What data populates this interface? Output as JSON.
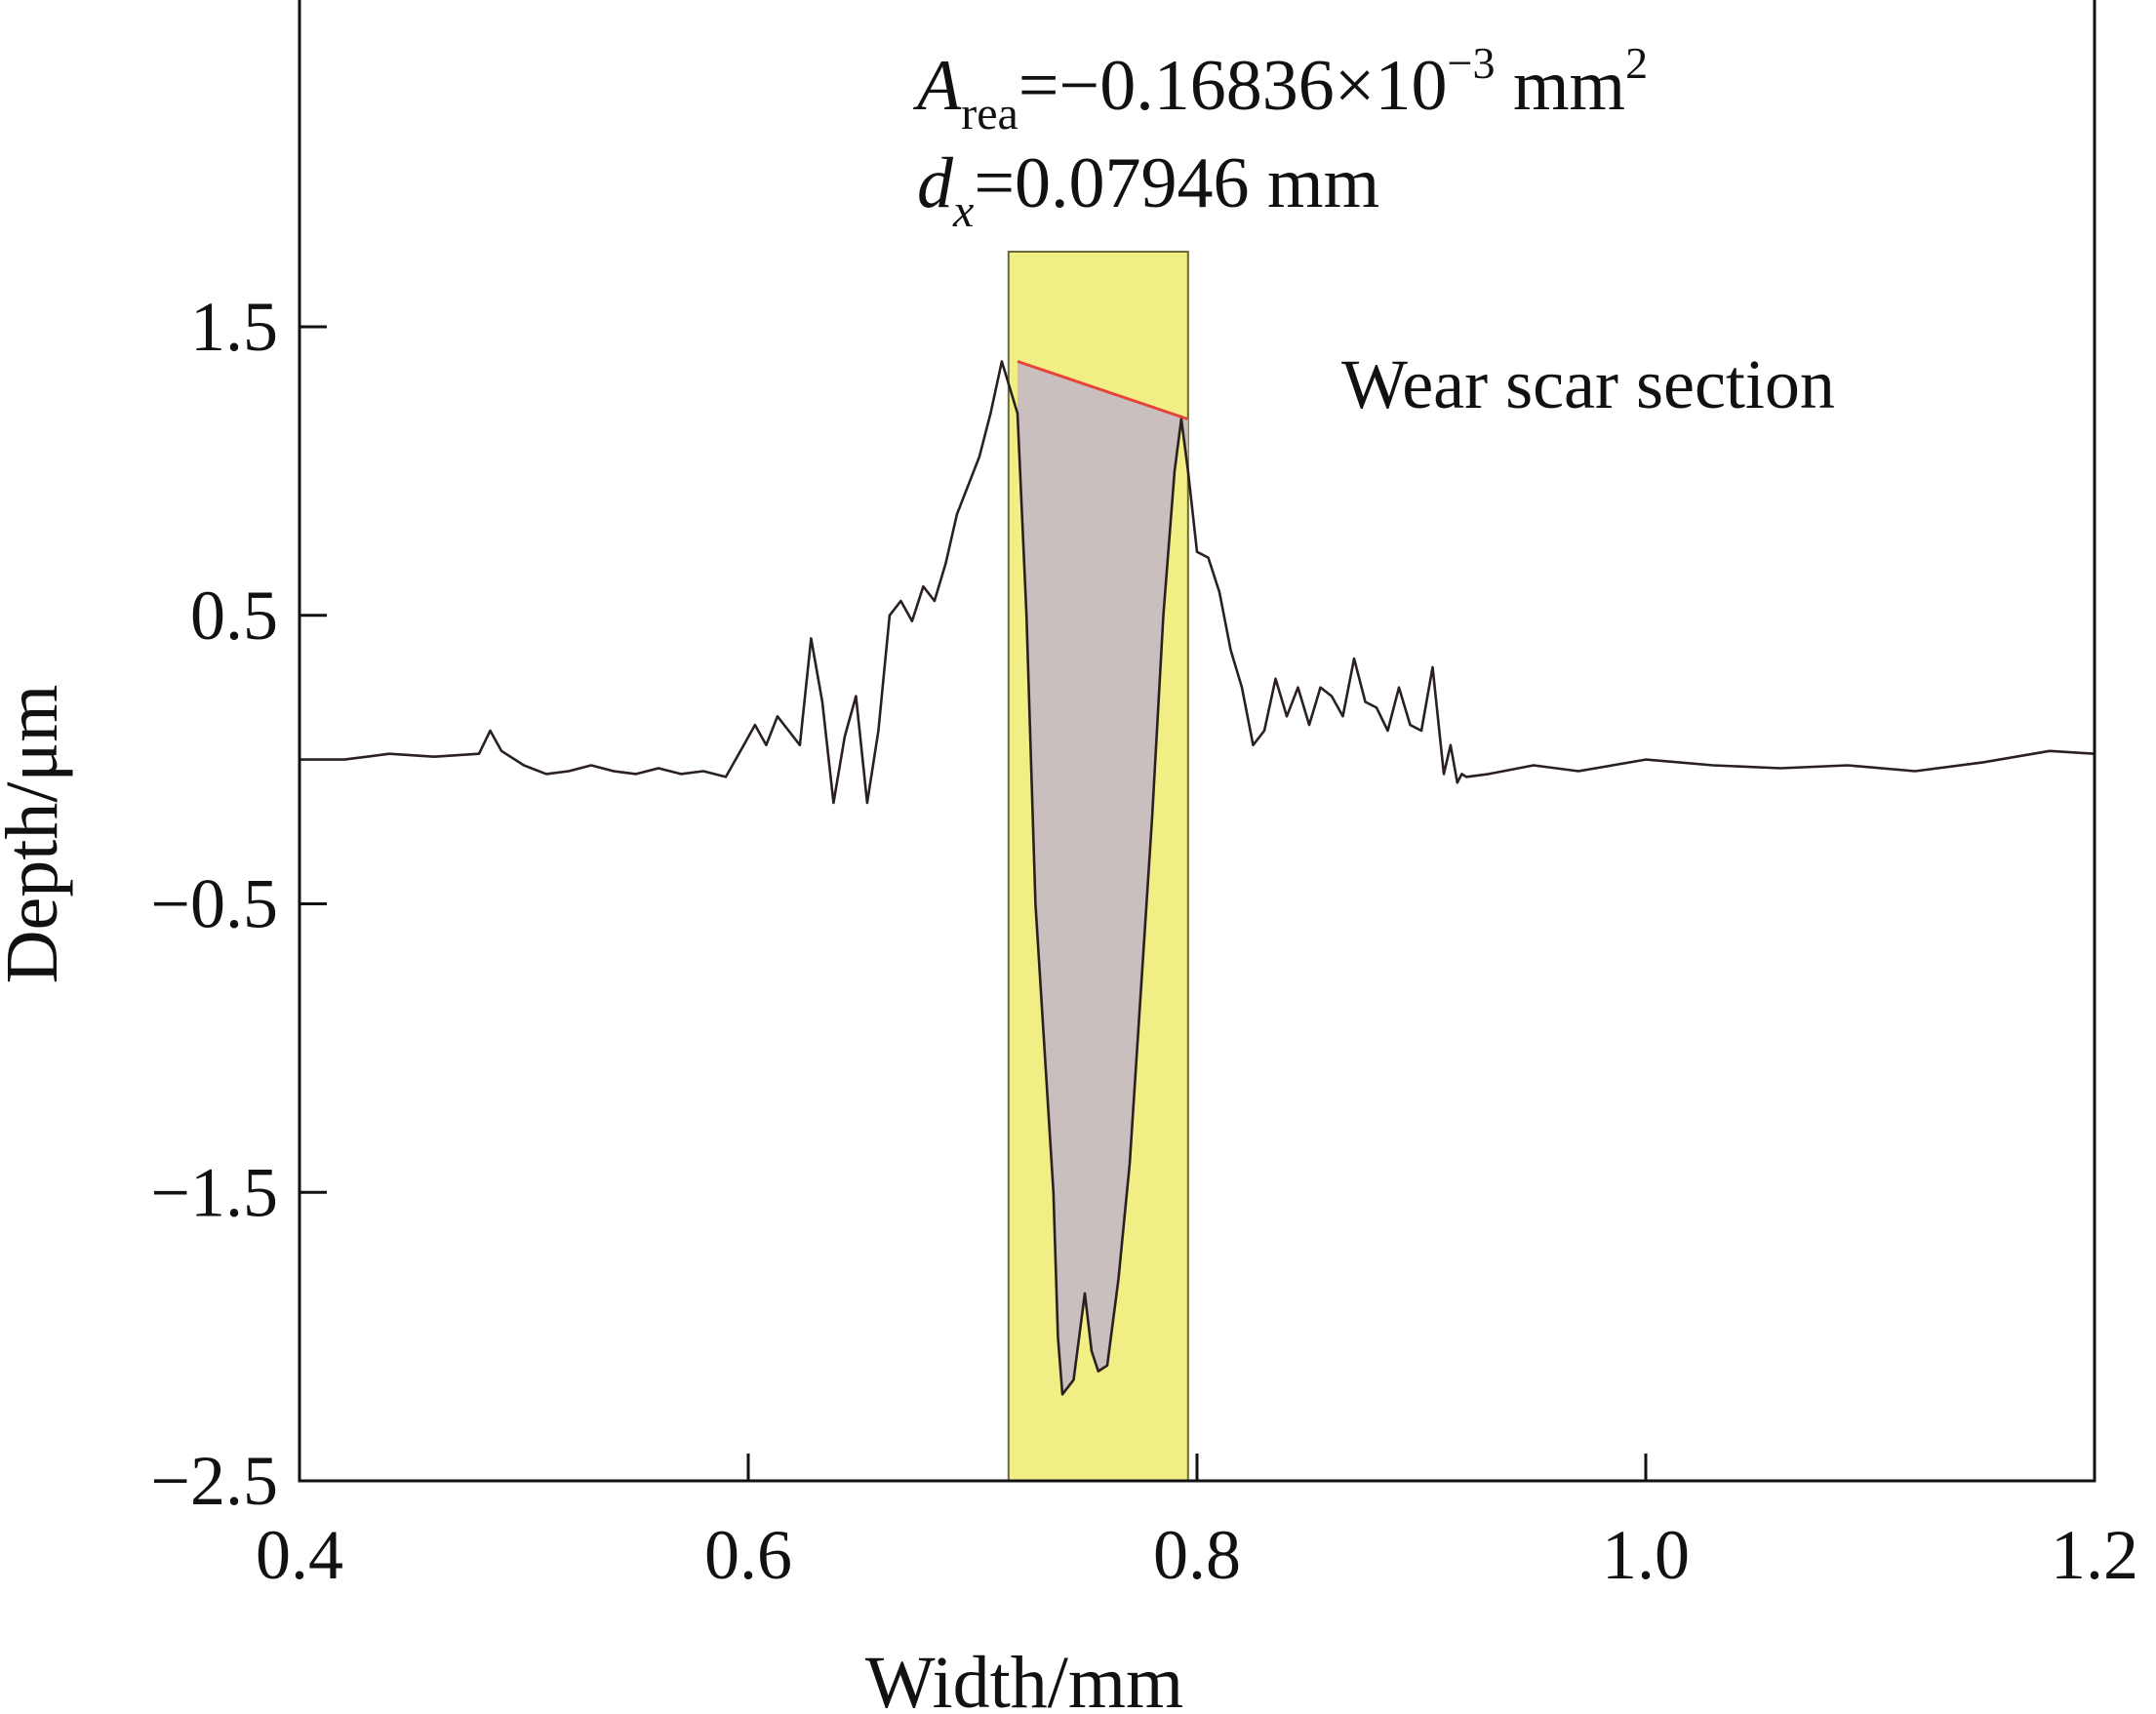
{
  "chart_data": {
    "type": "line",
    "title": "",
    "xlabel": "Width/mm",
    "ylabel": "Depth/μm",
    "xlim": [
      0.4,
      1.2
    ],
    "ylim": [
      -2.5,
      2.5
    ],
    "x_ticks": [
      0.4,
      0.6,
      0.8,
      1.0,
      1.2
    ],
    "x_tick_labels": [
      "0.4",
      "0.6",
      "0.8",
      "1.0",
      "1.2"
    ],
    "y_ticks": [
      1.5,
      0.5,
      -0.5,
      -1.5,
      -2.5
    ],
    "y_tick_labels": [
      "1.5",
      "0.5",
      "−0.5",
      "−1.5",
      "−2.5"
    ],
    "grid": false,
    "legend": {
      "text": "Wear scar section",
      "placement": "top-right"
    },
    "annotation": {
      "area_symbol": "A",
      "area_subscript": "rea",
      "area_value": "=−0.16836×10",
      "area_exponent": "−3",
      "area_unit": " mm",
      "area_unit_exp": "2",
      "dx_symbol": "d",
      "dx_subscript": "x",
      "dx_value": "=0.07946 mm"
    },
    "highlight_band": {
      "x_start": 0.716,
      "x_end": 0.796,
      "color": "#f2ee86"
    },
    "baseline_chord": {
      "from": [
        0.72,
        1.38
      ],
      "to": [
        0.796,
        1.18
      ],
      "color": "#e8433a"
    },
    "series": [
      {
        "x": [
          0.4,
          0.42,
          0.44,
          0.46,
          0.48,
          0.485,
          0.49,
          0.5,
          0.51,
          0.52,
          0.53,
          0.54,
          0.55,
          0.56,
          0.57,
          0.58,
          0.59,
          0.598,
          0.603,
          0.608,
          0.613,
          0.618,
          0.623,
          0.628,
          0.633,
          0.638,
          0.643,
          0.648,
          0.653,
          0.658,
          0.663,
          0.668,
          0.673,
          0.678,
          0.683,
          0.688,
          0.693,
          0.698,
          0.703,
          0.708,
          0.713,
          0.72,
          0.724,
          0.728,
          0.732,
          0.736,
          0.738,
          0.74,
          0.745,
          0.75,
          0.753,
          0.756,
          0.76,
          0.765,
          0.77,
          0.775,
          0.78,
          0.785,
          0.79,
          0.793,
          0.796,
          0.8,
          0.805,
          0.81,
          0.815,
          0.82,
          0.825,
          0.83,
          0.835,
          0.84,
          0.845,
          0.85,
          0.855,
          0.86,
          0.865,
          0.87,
          0.875,
          0.88,
          0.885,
          0.89,
          0.895,
          0.9,
          0.905,
          0.91,
          0.913,
          0.916,
          0.918,
          0.92,
          0.93,
          0.95,
          0.97,
          1.0,
          1.03,
          1.06,
          1.09,
          1.12,
          1.15,
          1.18,
          1.2
        ],
        "y": [
          0.0,
          0.0,
          0.02,
          0.01,
          0.02,
          0.1,
          0.03,
          -0.02,
          -0.05,
          -0.04,
          -0.02,
          -0.04,
          -0.05,
          -0.03,
          -0.05,
          -0.04,
          -0.06,
          0.05,
          0.12,
          0.05,
          0.15,
          0.1,
          0.05,
          0.42,
          0.2,
          -0.15,
          0.08,
          0.22,
          -0.15,
          0.1,
          0.5,
          0.55,
          0.48,
          0.6,
          0.55,
          0.68,
          0.85,
          0.95,
          1.05,
          1.2,
          1.38,
          1.2,
          0.5,
          -0.5,
          -1.0,
          -1.5,
          -2.0,
          -2.2,
          -2.15,
          -1.85,
          -2.05,
          -2.12,
          -2.1,
          -1.8,
          -1.4,
          -0.8,
          -0.2,
          0.5,
          1.0,
          1.18,
          1.0,
          0.72,
          0.7,
          0.58,
          0.38,
          0.25,
          0.05,
          0.1,
          0.28,
          0.15,
          0.25,
          0.12,
          0.25,
          0.22,
          0.15,
          0.35,
          0.2,
          0.18,
          0.1,
          0.25,
          0.12,
          0.1,
          0.32,
          -0.05,
          0.05,
          -0.08,
          -0.05,
          -0.06,
          -0.05,
          -0.02,
          -0.04,
          0.0,
          -0.02,
          -0.03,
          -0.02,
          -0.04,
          -0.01,
          0.03,
          0.02
        ]
      }
    ]
  }
}
